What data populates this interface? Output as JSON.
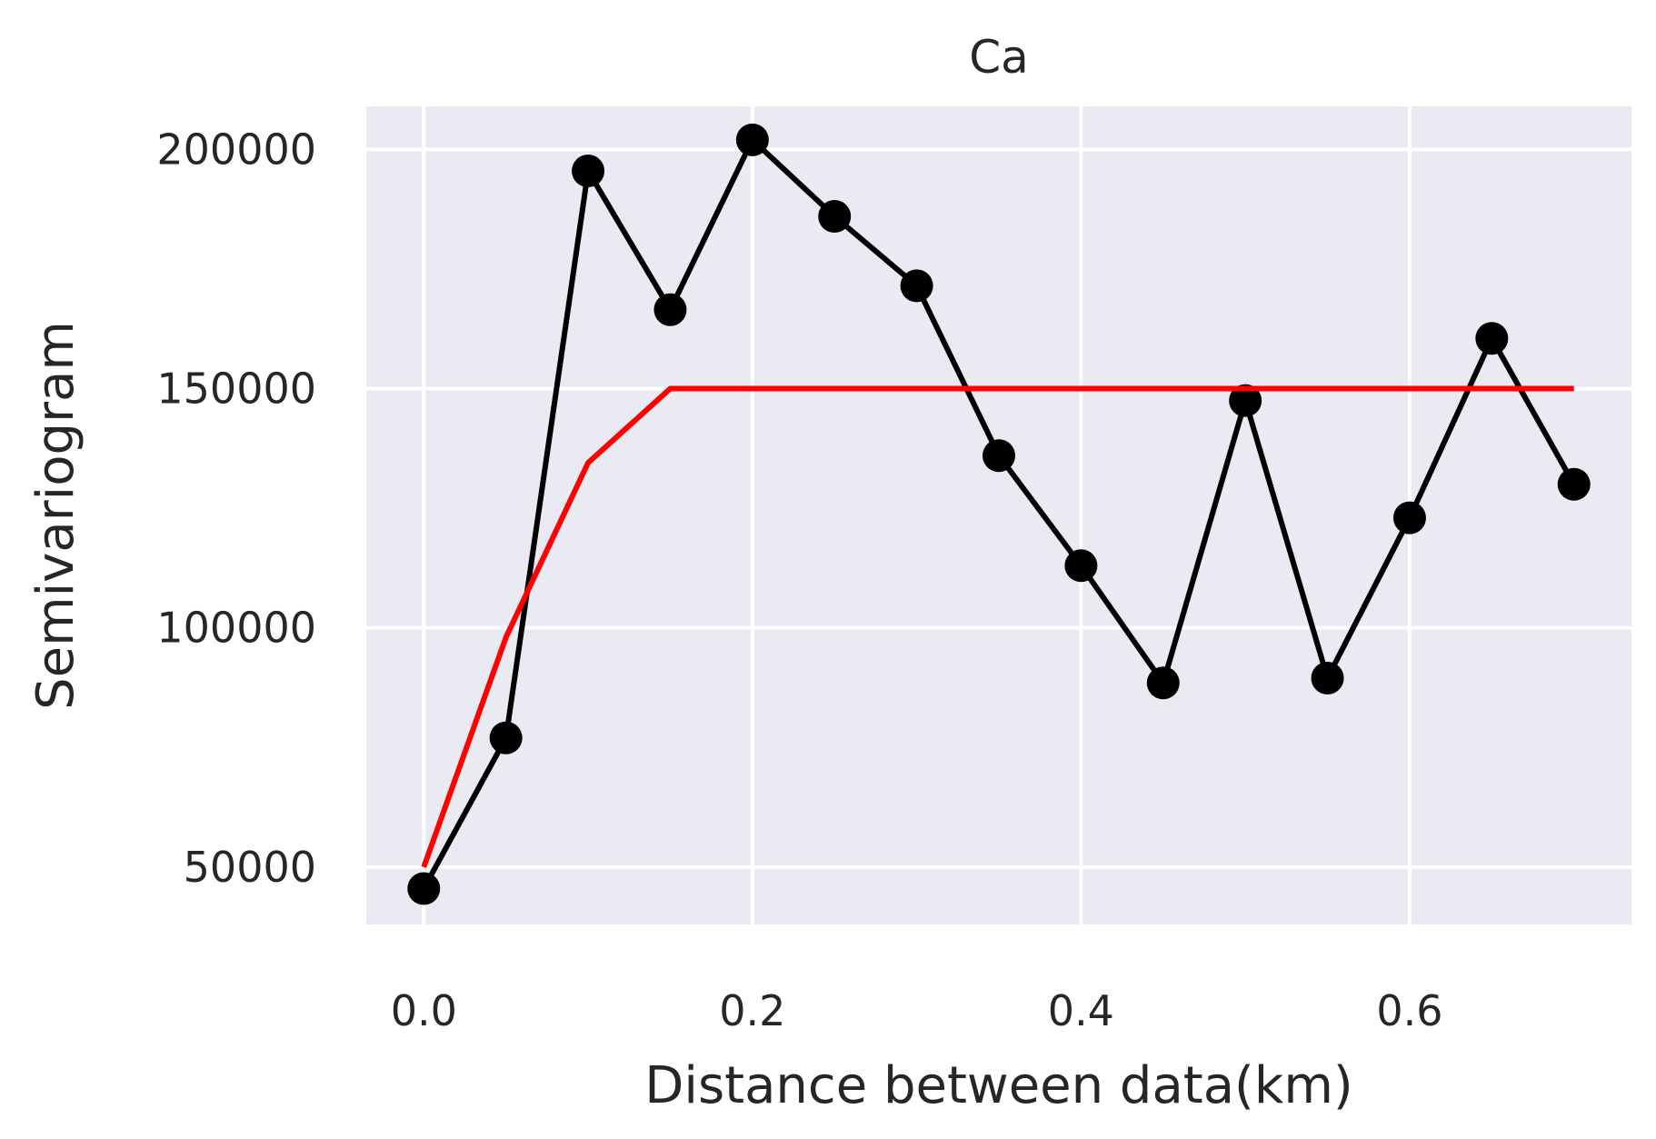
{
  "chart_data": {
    "type": "line",
    "title": "Ca",
    "xlabel": "Distance between data(km)",
    "ylabel": "Semivariogram",
    "xlim": [
      -0.035,
      0.735
    ],
    "ylim": [
      38000,
      209000
    ],
    "xticks": [
      0.0,
      0.2,
      0.4,
      0.6
    ],
    "xtick_labels": [
      "0.0",
      "0.2",
      "0.4",
      "0.6"
    ],
    "yticks": [
      50000,
      100000,
      150000,
      200000
    ],
    "ytick_labels": [
      "50000",
      "100000",
      "150000",
      "200000"
    ],
    "grid": true,
    "series": [
      {
        "color": "#000000",
        "marker": "circle",
        "x": [
          0.0,
          0.05,
          0.1,
          0.15,
          0.2,
          0.25,
          0.3,
          0.35,
          0.4,
          0.45,
          0.5,
          0.55,
          0.6,
          0.65,
          0.7
        ],
        "y": [
          45500,
          77000,
          195500,
          166500,
          202000,
          186000,
          171500,
          136000,
          113000,
          88500,
          147500,
          89500,
          123000,
          160500,
          130000
        ]
      },
      {
        "color": "#ff0000",
        "marker": "none",
        "x": [
          0.0,
          0.05,
          0.1,
          0.15,
          0.2,
          0.25,
          0.3,
          0.35,
          0.4,
          0.45,
          0.5,
          0.55,
          0.6,
          0.65,
          0.7
        ],
        "y": [
          50000,
          98000,
          134500,
          150000,
          150000,
          150000,
          150000,
          150000,
          150000,
          150000,
          150000,
          150000,
          150000,
          150000,
          150000
        ]
      }
    ]
  }
}
